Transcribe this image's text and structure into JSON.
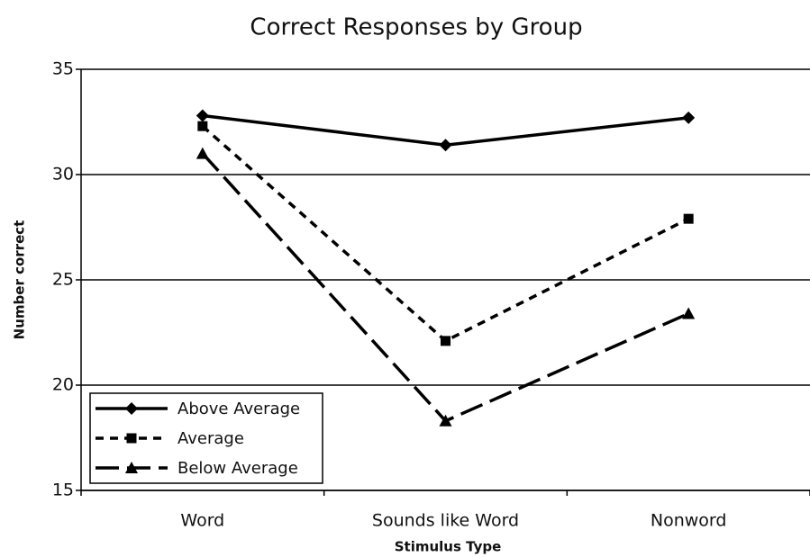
{
  "chart_data": {
    "type": "line",
    "title": "Correct Responses by Group",
    "x_label": "Stimulus Type",
    "y_label": "Number correct",
    "categories": [
      "Word",
      "Sounds like Word",
      "Nonword"
    ],
    "series": [
      {
        "name": "Above Average",
        "color": "#000000",
        "dash": "solid",
        "marker": "diamond",
        "values": [
          32.8,
          31.4,
          32.7
        ]
      },
      {
        "name": "Average",
        "color": "#000000",
        "dash": "dashed",
        "marker": "square",
        "values": [
          32.3,
          22.1,
          27.9
        ]
      },
      {
        "name": "Below Average",
        "color": "#000000",
        "dash": "longdash",
        "marker": "triangle",
        "values": [
          31.0,
          18.3,
          23.4
        ]
      }
    ],
    "ylim": [
      15,
      35
    ],
    "yticks": [
      15,
      20,
      25,
      30,
      35
    ],
    "grid": true,
    "legend": "lower left"
  }
}
